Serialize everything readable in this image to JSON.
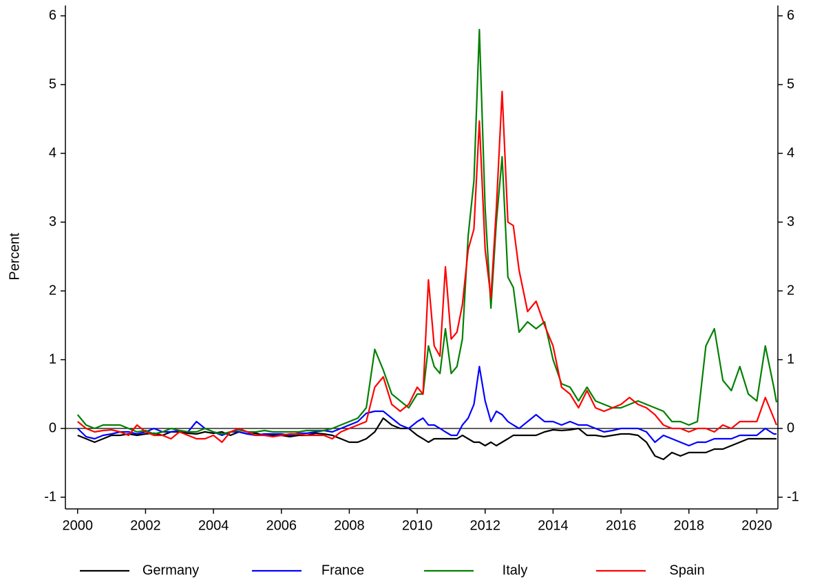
{
  "chart_data": {
    "type": "line",
    "y_label": "Percent",
    "x": [
      2000,
      2000.25,
      2000.5,
      2000.75,
      2001,
      2001.25,
      2001.5,
      2001.75,
      2002,
      2002.25,
      2002.5,
      2002.75,
      2003,
      2003.25,
      2003.5,
      2003.75,
      2004,
      2004.25,
      2004.5,
      2004.75,
      2005,
      2005.25,
      2005.5,
      2005.75,
      2006,
      2006.25,
      2006.5,
      2006.75,
      2007,
      2007.25,
      2007.5,
      2007.75,
      2008,
      2008.25,
      2008.5,
      2008.75,
      2009,
      2009.25,
      2009.5,
      2009.75,
      2010,
      2010.17,
      2010.33,
      2010.5,
      2010.67,
      2010.83,
      2011,
      2011.17,
      2011.33,
      2011.5,
      2011.67,
      2011.83,
      2012,
      2012.17,
      2012.33,
      2012.5,
      2012.67,
      2012.83,
      2013,
      2013.25,
      2013.5,
      2013.75,
      2014,
      2014.25,
      2014.5,
      2014.75,
      2015,
      2015.25,
      2015.5,
      2015.75,
      2016,
      2016.25,
      2016.5,
      2016.75,
      2017,
      2017.25,
      2017.5,
      2017.75,
      2018,
      2018.25,
      2018.5,
      2018.75,
      2019,
      2019.25,
      2019.5,
      2019.75,
      2020,
      2020.25,
      2020.5,
      2020.58
    ],
    "series": [
      {
        "name": "Germany",
        "color": "#000000",
        "values": [
          -0.1,
          -0.15,
          -0.2,
          -0.15,
          -0.1,
          -0.1,
          -0.08,
          -0.1,
          -0.08,
          -0.07,
          -0.1,
          -0.05,
          -0.05,
          -0.07,
          -0.08,
          -0.05,
          -0.07,
          -0.05,
          -0.1,
          -0.05,
          -0.08,
          -0.07,
          -0.1,
          -0.1,
          -0.1,
          -0.12,
          -0.1,
          -0.1,
          -0.07,
          -0.08,
          -0.1,
          -0.15,
          -0.2,
          -0.2,
          -0.15,
          -0.05,
          0.15,
          0.05,
          0,
          0,
          -0.1,
          -0.15,
          -0.2,
          -0.15,
          -0.15,
          -0.15,
          -0.15,
          -0.15,
          -0.1,
          -0.15,
          -0.2,
          -0.2,
          -0.25,
          -0.2,
          -0.25,
          -0.2,
          -0.15,
          -0.1,
          -0.1,
          -0.1,
          -0.1,
          -0.05,
          -0.02,
          -0.03,
          -0.02,
          0,
          -0.1,
          -0.1,
          -0.12,
          -0.1,
          -0.08,
          -0.08,
          -0.1,
          -0.2,
          -0.4,
          -0.45,
          -0.35,
          -0.4,
          -0.35,
          -0.35,
          -0.35,
          -0.3,
          -0.3,
          -0.25,
          -0.2,
          -0.15,
          -0.15,
          -0.15,
          -0.15,
          -0.15
        ]
      },
      {
        "name": "France",
        "color": "#0000ff",
        "values": [
          0,
          -0.12,
          -0.15,
          -0.1,
          -0.08,
          -0.05,
          -0.05,
          -0.08,
          -0.05,
          0,
          -0.05,
          -0.05,
          -0.03,
          -0.05,
          0.1,
          0,
          -0.05,
          -0.1,
          -0.05,
          -0.05,
          -0.08,
          -0.1,
          -0.08,
          -0.08,
          -0.08,
          -0.1,
          -0.07,
          -0.07,
          -0.05,
          -0.03,
          -0.05,
          0,
          0.05,
          0.1,
          0.22,
          0.25,
          0.25,
          0.15,
          0.05,
          0,
          0.1,
          0.15,
          0.05,
          0.05,
          0,
          -0.05,
          -0.1,
          -0.1,
          0.05,
          0.15,
          0.35,
          0.9,
          0.4,
          0.1,
          0.25,
          0.2,
          0.1,
          0.05,
          0,
          0.1,
          0.2,
          0.1,
          0.1,
          0.05,
          0.1,
          0.05,
          0.05,
          0,
          -0.05,
          -0.03,
          0,
          0,
          0,
          -0.05,
          -0.2,
          -0.1,
          -0.15,
          -0.2,
          -0.25,
          -0.2,
          -0.2,
          -0.15,
          -0.15,
          -0.15,
          -0.1,
          -0.1,
          -0.1,
          0,
          -0.08,
          -0.08
        ]
      },
      {
        "name": "Italy",
        "color": "#008000",
        "values": [
          0.2,
          0.05,
          0,
          0.05,
          0.05,
          0.05,
          0,
          -0.05,
          -0.03,
          -0.08,
          -0.05,
          0,
          -0.03,
          -0.05,
          -0.05,
          0,
          -0.05,
          -0.08,
          -0.05,
          -0.02,
          -0.05,
          -0.05,
          -0.03,
          -0.05,
          -0.05,
          -0.05,
          -0.05,
          -0.03,
          -0.03,
          -0.03,
          0,
          0.05,
          0.1,
          0.15,
          0.3,
          1.15,
          0.85,
          0.5,
          0.4,
          0.3,
          0.5,
          0.5,
          1.2,
          0.9,
          0.8,
          1.45,
          0.8,
          0.9,
          1.3,
          2.8,
          3.6,
          5.8,
          3.2,
          1.75,
          3.0,
          3.95,
          2.2,
          2.05,
          1.4,
          1.55,
          1.45,
          1.55,
          1.0,
          0.65,
          0.6,
          0.4,
          0.6,
          0.4,
          0.35,
          0.3,
          0.3,
          0.35,
          0.4,
          0.35,
          0.3,
          0.25,
          0.1,
          0.1,
          0.05,
          0.1,
          1.2,
          1.45,
          0.7,
          0.55,
          0.9,
          0.5,
          0.4,
          1.2,
          0.6,
          0.38
        ]
      },
      {
        "name": "Spain",
        "color": "#ff0000",
        "values": [
          0.1,
          0,
          -0.05,
          -0.03,
          -0.02,
          -0.05,
          -0.1,
          0.05,
          -0.05,
          -0.1,
          -0.1,
          -0.15,
          -0.05,
          -0.1,
          -0.15,
          -0.15,
          -0.1,
          -0.2,
          -0.05,
          0,
          -0.05,
          -0.1,
          -0.1,
          -0.12,
          -0.1,
          -0.08,
          -0.08,
          -0.1,
          -0.1,
          -0.1,
          -0.15,
          -0.05,
          0,
          0.05,
          0.1,
          0.6,
          0.75,
          0.35,
          0.25,
          0.35,
          0.6,
          0.5,
          2.16,
          1.2,
          1.05,
          2.35,
          1.3,
          1.4,
          1.8,
          2.6,
          2.9,
          4.47,
          2.6,
          1.9,
          3.2,
          4.9,
          3.0,
          2.95,
          2.3,
          1.7,
          1.85,
          1.5,
          1.2,
          0.6,
          0.5,
          0.3,
          0.55,
          0.3,
          0.25,
          0.3,
          0.35,
          0.45,
          0.35,
          0.3,
          0.2,
          0.05,
          0,
          0,
          -0.05,
          0,
          0,
          -0.05,
          0.05,
          0,
          0.1,
          0.1,
          0.1,
          0.45,
          0.15,
          0.05
        ]
      }
    ],
    "xlim": [
      1999.64,
      2020.62
    ],
    "xticks": [
      2000,
      2002,
      2004,
      2006,
      2008,
      2010,
      2012,
      2014,
      2016,
      2018,
      2020
    ],
    "ylim": [
      -1.17,
      6.15
    ],
    "yticks": [
      -1,
      0,
      1,
      2,
      3,
      4,
      5,
      6
    ],
    "y2lim": [
      -1.17,
      6.15
    ],
    "y2ticks": [
      -1,
      0,
      1,
      2,
      3,
      4,
      5,
      6
    ],
    "hline": 0,
    "legend": "bottom"
  }
}
